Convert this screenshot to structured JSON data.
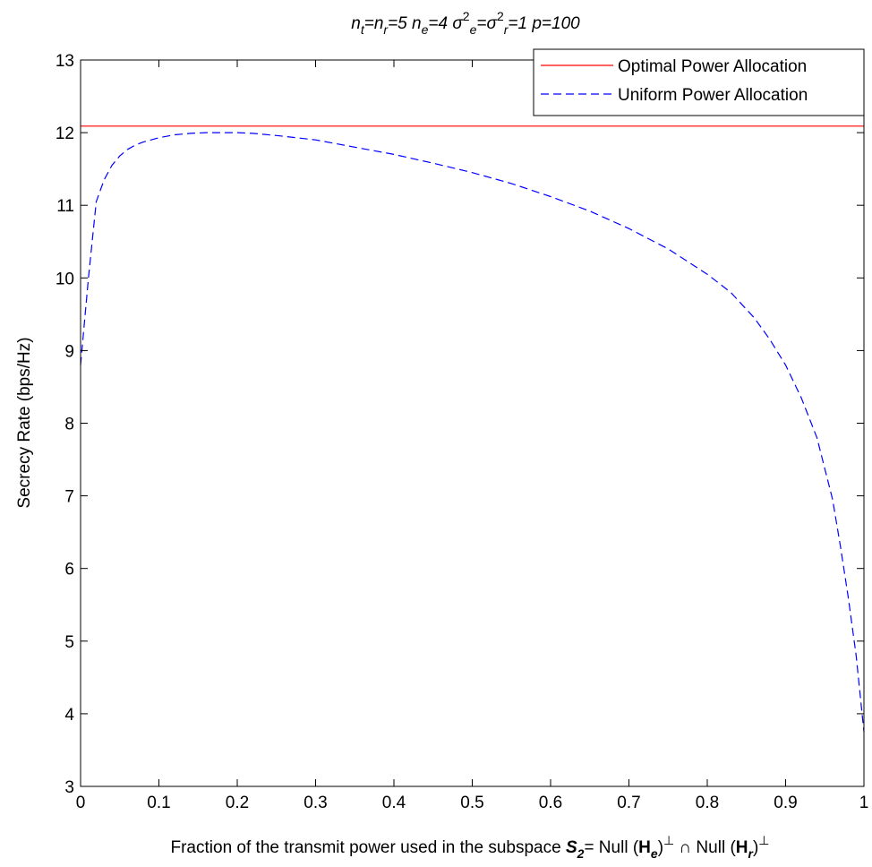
{
  "chart_data": {
    "type": "line",
    "title": {
      "parts": [
        {
          "text": "n",
          "style": "i"
        },
        {
          "text": "t",
          "style": "isub"
        },
        {
          "text": "=n",
          "style": "i"
        },
        {
          "text": "r",
          "style": "isub"
        },
        {
          "text": "=5   n",
          "style": "i"
        },
        {
          "text": "e",
          "style": "isub"
        },
        {
          "text": "=4   σ",
          "style": "i"
        },
        {
          "text": "2",
          "style": "sup"
        },
        {
          "text": "e",
          "style": "isub"
        },
        {
          "text": "=σ",
          "style": "i"
        },
        {
          "text": "2",
          "style": "sup"
        },
        {
          "text": "r",
          "style": "isub"
        },
        {
          "text": "=1  p=100",
          "style": "i"
        }
      ]
    },
    "ylabel": "Secrecy Rate (bps/Hz)",
    "xlabel": {
      "parts": [
        {
          "text": "Fraction of the transmit power used in the subspace ",
          "style": "n"
        },
        {
          "text": "S",
          "style": "bi"
        },
        {
          "text": "2",
          "style": "bisub"
        },
        {
          "text": "= Null (",
          "style": "n"
        },
        {
          "text": "H",
          "style": "b"
        },
        {
          "text": "e",
          "style": "bisub"
        },
        {
          "text": ")",
          "style": "n"
        },
        {
          "text": "⊥",
          "style": "sup"
        },
        {
          "text": " ∩ Null (",
          "style": "n"
        },
        {
          "text": "H",
          "style": "b"
        },
        {
          "text": "r",
          "style": "bisub"
        },
        {
          "text": ")",
          "style": "n"
        },
        {
          "text": "⊥",
          "style": "sup"
        }
      ]
    },
    "xlim": [
      0,
      1
    ],
    "ylim": [
      3,
      13
    ],
    "xticks": [
      0,
      0.1,
      0.2,
      0.3,
      0.4,
      0.5,
      0.6,
      0.7,
      0.8,
      0.9,
      1
    ],
    "xtick_labels": [
      "0",
      "0.1",
      "0.2",
      "0.3",
      "0.4",
      "0.5",
      "0.6",
      "0.7",
      "0.8",
      "0.9",
      "1"
    ],
    "yticks": [
      3,
      4,
      5,
      6,
      7,
      8,
      9,
      10,
      11,
      12,
      13
    ],
    "ytick_labels": [
      "3",
      "4",
      "5",
      "6",
      "7",
      "8",
      "9",
      "10",
      "11",
      "12",
      "13"
    ],
    "grid": false,
    "legend_position": "top-right",
    "series": [
      {
        "name": "Optimal Power Allocation",
        "color": "#ff0000",
        "dash": "solid",
        "x": [
          0,
          1
        ],
        "y": [
          12.09,
          12.09
        ]
      },
      {
        "name": "Uniform Power Allocation",
        "color": "#0000ff",
        "dash": "dashed",
        "x": [
          0,
          0.01,
          0.02,
          0.03,
          0.04,
          0.05,
          0.06,
          0.07,
          0.08,
          0.09,
          0.1,
          0.12,
          0.14,
          0.16,
          0.18,
          0.2,
          0.22,
          0.25,
          0.3,
          0.35,
          0.4,
          0.45,
          0.5,
          0.55,
          0.6,
          0.65,
          0.7,
          0.75,
          0.8,
          0.83,
          0.86,
          0.88,
          0.9,
          0.92,
          0.94,
          0.96,
          0.97,
          0.98,
          0.99,
          1.0
        ],
        "y": [
          8.8,
          10.0,
          11.05,
          11.35,
          11.55,
          11.68,
          11.77,
          11.83,
          11.87,
          11.9,
          11.93,
          11.97,
          11.99,
          12.0,
          12.0,
          12.0,
          11.99,
          11.96,
          11.9,
          11.8,
          11.7,
          11.58,
          11.45,
          11.3,
          11.12,
          10.92,
          10.68,
          10.4,
          10.05,
          9.8,
          9.45,
          9.15,
          8.8,
          8.35,
          7.8,
          6.95,
          6.3,
          5.6,
          4.8,
          3.75
        ]
      }
    ]
  }
}
